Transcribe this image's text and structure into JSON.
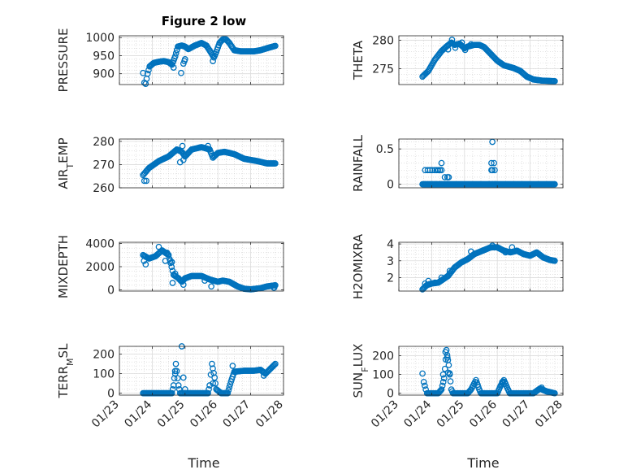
{
  "figure_title": "Figure 2 low",
  "x_axis_label": "Time",
  "colors": {
    "marker": "#0072BD",
    "axis": "#262626",
    "grid": "#cfcfcf"
  },
  "chart_data": [
    {
      "id": "pressure",
      "type": "scatter",
      "ylabel": "PRESSURE",
      "xlim": [
        0,
        5
      ],
      "ylim": [
        870,
        1005
      ],
      "yticks": [
        900,
        950,
        1000
      ],
      "xticks": [
        0,
        1,
        2,
        3,
        4,
        5
      ],
      "xticklabels": [
        "01/23",
        "01/24",
        "01/25",
        "01/26",
        "01/27",
        "01/28"
      ],
      "show_xticklabels": false,
      "grid": "major+minor",
      "anchors": [
        [
          0.72,
          902
        ],
        [
          0.76,
          875
        ],
        [
          0.8,
          872
        ],
        [
          0.86,
          900
        ],
        [
          0.92,
          920
        ],
        [
          1.05,
          930
        ],
        [
          1.2,
          933
        ],
        [
          1.35,
          935
        ],
        [
          1.5,
          932
        ],
        [
          1.6,
          925
        ],
        [
          1.7,
          948
        ],
        [
          1.78,
          975
        ],
        [
          1.9,
          978
        ],
        [
          2.0,
          975
        ],
        [
          2.1,
          968
        ],
        [
          2.3,
          978
        ],
        [
          2.5,
          985
        ],
        [
          2.65,
          978
        ],
        [
          2.78,
          960
        ],
        [
          2.88,
          945
        ],
        [
          2.95,
          960
        ],
        [
          3.05,
          985
        ],
        [
          3.15,
          995
        ],
        [
          3.25,
          995
        ],
        [
          3.35,
          985
        ],
        [
          3.5,
          965
        ],
        [
          3.7,
          962
        ],
        [
          3.9,
          962
        ],
        [
          4.1,
          962
        ],
        [
          4.3,
          965
        ],
        [
          4.55,
          972
        ],
        [
          4.75,
          977
        ]
      ],
      "extra_points": [
        [
          1.88,
          902
        ],
        [
          1.98,
          935
        ],
        [
          2.0,
          940
        ],
        [
          1.95,
          928
        ],
        [
          2.85,
          935
        ],
        [
          1.75,
          965
        ],
        [
          1.65,
          917
        ]
      ]
    },
    {
      "id": "theta",
      "type": "scatter",
      "ylabel": "THETA",
      "xlim": [
        0,
        5
      ],
      "ylim": [
        272.2,
        280.8
      ],
      "yticks": [
        275,
        280
      ],
      "xticks": [
        0,
        1,
        2,
        3,
        4,
        5
      ],
      "xticklabels": [
        "01/23",
        "01/24",
        "01/25",
        "01/26",
        "01/27",
        "01/28"
      ],
      "show_xticklabels": false,
      "grid": "major+minor",
      "anchors": [
        [
          0.72,
          273.6
        ],
        [
          0.9,
          274.6
        ],
        [
          1.1,
          276.6
        ],
        [
          1.3,
          278.1
        ],
        [
          1.45,
          278.9
        ],
        [
          1.6,
          279.6
        ],
        [
          1.7,
          279.2
        ],
        [
          1.85,
          279.4
        ],
        [
          2.0,
          278.6
        ],
        [
          2.1,
          278.9
        ],
        [
          2.3,
          279.2
        ],
        [
          2.45,
          279.2
        ],
        [
          2.6,
          278.8
        ],
        [
          2.8,
          277.6
        ],
        [
          3.0,
          276.4
        ],
        [
          3.2,
          275.6
        ],
        [
          3.5,
          275.1
        ],
        [
          3.7,
          274.6
        ],
        [
          3.9,
          273.6
        ],
        [
          4.1,
          273.1
        ],
        [
          4.35,
          272.9
        ],
        [
          4.75,
          272.8
        ]
      ],
      "extra_points": [
        [
          1.62,
          280.1
        ],
        [
          1.72,
          278.7
        ],
        [
          1.92,
          279.6
        ],
        [
          2.02,
          278.3
        ],
        [
          1.5,
          278.4
        ],
        [
          2.2,
          279.3
        ]
      ]
    },
    {
      "id": "air_temp",
      "type": "scatter",
      "ylabel": "AIR_T EMP",
      "xlim": [
        0,
        5
      ],
      "ylim": [
        260,
        281
      ],
      "yticks": [
        260,
        270,
        280
      ],
      "xticks": [
        0,
        1,
        2,
        3,
        4,
        5
      ],
      "xticklabels": [
        "01/23",
        "01/24",
        "01/25",
        "01/26",
        "01/27",
        "01/28"
      ],
      "show_xticklabels": false,
      "grid": "major+minor",
      "anchors": [
        [
          0.72,
          265.5
        ],
        [
          0.9,
          268.5
        ],
        [
          1.2,
          271.5
        ],
        [
          1.5,
          273.5
        ],
        [
          1.75,
          276.5
        ],
        [
          1.9,
          275.5
        ],
        [
          2.0,
          273.5
        ],
        [
          2.2,
          276.5
        ],
        [
          2.5,
          277.5
        ],
        [
          2.75,
          276.5
        ],
        [
          2.85,
          273
        ],
        [
          3.0,
          275
        ],
        [
          3.2,
          275.5
        ],
        [
          3.5,
          274.5
        ],
        [
          3.8,
          272.5
        ],
        [
          4.2,
          271.5
        ],
        [
          4.5,
          270.5
        ],
        [
          4.75,
          270.5
        ]
      ],
      "extra_points": [
        [
          0.76,
          263
        ],
        [
          0.82,
          263
        ],
        [
          1.85,
          271
        ],
        [
          1.92,
          278
        ],
        [
          1.95,
          272
        ],
        [
          2.7,
          278
        ]
      ]
    },
    {
      "id": "rainfall",
      "type": "scatter",
      "ylabel": "RAINFALL",
      "xlim": [
        0,
        5
      ],
      "ylim": [
        -0.05,
        0.64
      ],
      "yticks": [
        0,
        0.5
      ],
      "xticks": [
        0,
        1,
        2,
        3,
        4,
        5
      ],
      "xticklabels": [
        "01/23",
        "01/24",
        "01/25",
        "01/26",
        "01/27",
        "01/28"
      ],
      "show_xticklabels": false,
      "grid": "major+minor",
      "anchors": [
        [
          0.72,
          0
        ],
        [
          1.7,
          0
        ],
        [
          4.75,
          0
        ]
      ],
      "extra_points": [
        [
          0.8,
          0.2
        ],
        [
          0.88,
          0.2
        ],
        [
          0.95,
          0.2
        ],
        [
          1.02,
          0.2
        ],
        [
          1.1,
          0.2
        ],
        [
          1.15,
          0.2
        ],
        [
          1.2,
          0.2
        ],
        [
          1.25,
          0.2
        ],
        [
          1.3,
          0.3
        ],
        [
          1.3,
          0.2
        ],
        [
          1.4,
          0.1
        ],
        [
          1.48,
          0.1
        ],
        [
          1.52,
          0.1
        ],
        [
          0.8,
          0
        ],
        [
          0.88,
          0
        ],
        [
          0.95,
          0
        ],
        [
          1.02,
          0
        ],
        [
          1.1,
          0
        ],
        [
          1.15,
          0
        ],
        [
          1.25,
          0
        ],
        [
          1.3,
          0
        ],
        [
          1.4,
          0
        ],
        [
          1.48,
          0
        ],
        [
          2.85,
          0.6
        ],
        [
          2.82,
          0.3
        ],
        [
          2.9,
          0.3
        ],
        [
          2.85,
          0.2
        ],
        [
          2.92,
          0.2
        ],
        [
          2.82,
          0.2
        ],
        [
          2.75,
          0
        ],
        [
          2.85,
          0
        ],
        [
          2.92,
          0
        ],
        [
          2.95,
          0
        ]
      ]
    },
    {
      "id": "mixdepth",
      "type": "scatter",
      "ylabel": "MIXDEPTH",
      "xlim": [
        0,
        5
      ],
      "ylim": [
        -100,
        4100
      ],
      "yticks": [
        0,
        2000,
        4000
      ],
      "xticks": [
        0,
        1,
        2,
        3,
        4,
        5
      ],
      "xticklabels": [
        "01/23",
        "01/24",
        "01/25",
        "01/26",
        "01/27",
        "01/28"
      ],
      "show_xticklabels": false,
      "grid": "major+minor",
      "anchors": [
        [
          0.72,
          3000
        ],
        [
          0.9,
          2700
        ],
        [
          1.1,
          2900
        ],
        [
          1.3,
          3400
        ],
        [
          1.5,
          3000
        ],
        [
          1.65,
          1300
        ],
        [
          1.8,
          1000
        ],
        [
          1.9,
          700
        ],
        [
          2.0,
          1000
        ],
        [
          2.2,
          1200
        ],
        [
          2.5,
          1200
        ],
        [
          2.75,
          900
        ],
        [
          3.0,
          700
        ],
        [
          3.15,
          800
        ],
        [
          3.35,
          700
        ],
        [
          3.6,
          300
        ],
        [
          3.8,
          100
        ],
        [
          4.0,
          50
        ],
        [
          4.3,
          150
        ],
        [
          4.5,
          300
        ],
        [
          4.75,
          400
        ]
      ],
      "extra_points": [
        [
          0.75,
          2500
        ],
        [
          0.8,
          2200
        ],
        [
          1.2,
          3700
        ],
        [
          1.4,
          2500
        ],
        [
          1.45,
          3200
        ],
        [
          1.55,
          2500
        ],
        [
          1.6,
          2400
        ],
        [
          1.7,
          1400
        ],
        [
          1.62,
          600
        ],
        [
          1.95,
          450
        ],
        [
          2.8,
          300
        ],
        [
          2.6,
          800
        ],
        [
          4.7,
          200
        ],
        [
          4.72,
          200
        ]
      ]
    },
    {
      "id": "h2omixra",
      "type": "scatter",
      "ylabel": "H2OMIXRA",
      "xlim": [
        0,
        5
      ],
      "ylim": [
        1.2,
        4.1
      ],
      "yticks": [
        2,
        3,
        4
      ],
      "xticks": [
        0,
        1,
        2,
        3,
        4,
        5
      ],
      "xticklabels": [
        "01/23",
        "01/24",
        "01/25",
        "01/26",
        "01/27",
        "01/28"
      ],
      "show_xticklabels": false,
      "grid": "major+minor",
      "anchors": [
        [
          0.72,
          1.3
        ],
        [
          0.85,
          1.55
        ],
        [
          1.0,
          1.65
        ],
        [
          1.2,
          1.7
        ],
        [
          1.5,
          2.1
        ],
        [
          1.7,
          2.6
        ],
        [
          1.9,
          2.9
        ],
        [
          2.1,
          3.1
        ],
        [
          2.3,
          3.4
        ],
        [
          2.55,
          3.6
        ],
        [
          2.8,
          3.8
        ],
        [
          3.0,
          3.8
        ],
        [
          3.2,
          3.6
        ],
        [
          3.4,
          3.5
        ],
        [
          3.6,
          3.6
        ],
        [
          3.8,
          3.4
        ],
        [
          4.0,
          3.3
        ],
        [
          4.2,
          3.5
        ],
        [
          4.4,
          3.2
        ],
        [
          4.6,
          3.05
        ],
        [
          4.75,
          3.0
        ]
      ],
      "extra_points": [
        [
          0.8,
          1.65
        ],
        [
          0.9,
          1.8
        ],
        [
          1.1,
          1.7
        ],
        [
          1.3,
          2.0
        ],
        [
          1.55,
          2.4
        ],
        [
          2.2,
          3.55
        ],
        [
          2.85,
          3.9
        ],
        [
          3.05,
          3.75
        ],
        [
          3.25,
          3.5
        ],
        [
          3.45,
          3.8
        ]
      ]
    },
    {
      "id": "terr_msl",
      "type": "scatter",
      "ylabel": "TERR_M SL",
      "xlim": [
        0,
        5
      ],
      "ylim": [
        -10,
        240
      ],
      "yticks": [
        0,
        100,
        200
      ],
      "xticks": [
        0,
        1,
        2,
        3,
        4,
        5
      ],
      "xticklabels": [
        "01/23",
        "01/24",
        "01/25",
        "01/26",
        "01/27",
        "01/28"
      ],
      "show_xticklabels": true,
      "grid": "major+minor",
      "anchors": [
        [
          0.72,
          0
        ],
        [
          1.6,
          0
        ],
        [
          1.65,
          40
        ],
        [
          1.72,
          150
        ],
        [
          1.8,
          40
        ],
        [
          1.85,
          0
        ],
        [
          2.3,
          0
        ],
        [
          2.7,
          0
        ],
        [
          2.75,
          40
        ],
        [
          2.82,
          150
        ],
        [
          2.9,
          80
        ],
        [
          2.95,
          20
        ],
        [
          3.1,
          0
        ],
        [
          3.3,
          0
        ],
        [
          3.4,
          60
        ],
        [
          3.5,
          110
        ],
        [
          3.8,
          115
        ],
        [
          4.1,
          115
        ],
        [
          4.3,
          120
        ],
        [
          4.45,
          100
        ],
        [
          4.75,
          150
        ]
      ],
      "extra_points": [
        [
          1.7,
          100
        ],
        [
          1.9,
          270
        ],
        [
          1.95,
          80
        ],
        [
          2.0,
          20
        ],
        [
          2.85,
          50
        ],
        [
          3.45,
          140
        ],
        [
          4.4,
          90
        ]
      ]
    },
    {
      "id": "sun_flux",
      "type": "scatter",
      "ylabel": "SUN_F LUX",
      "xlim": [
        0,
        5
      ],
      "ylim": [
        -10,
        250
      ],
      "yticks": [
        0,
        100,
        200
      ],
      "xticks": [
        0,
        1,
        2,
        3,
        4,
        5
      ],
      "xticklabels": [
        "01/23",
        "01/24",
        "01/25",
        "01/26",
        "01/27",
        "01/28"
      ],
      "show_xticklabels": true,
      "grid": "major+minor",
      "anchors": [
        [
          0.72,
          105
        ],
        [
          0.76,
          60
        ],
        [
          0.82,
          20
        ],
        [
          0.86,
          0
        ],
        [
          1.2,
          0
        ],
        [
          1.3,
          20
        ],
        [
          1.38,
          80
        ],
        [
          1.45,
          230
        ],
        [
          1.52,
          150
        ],
        [
          1.6,
          20
        ],
        [
          1.65,
          0
        ],
        [
          2.1,
          0
        ],
        [
          2.2,
          20
        ],
        [
          2.35,
          70
        ],
        [
          2.45,
          20
        ],
        [
          2.5,
          0
        ],
        [
          3.0,
          0
        ],
        [
          3.1,
          40
        ],
        [
          3.2,
          70
        ],
        [
          3.3,
          30
        ],
        [
          3.38,
          0
        ],
        [
          4.1,
          0
        ],
        [
          4.3,
          25
        ],
        [
          4.5,
          10
        ],
        [
          4.75,
          0
        ]
      ],
      "extra_points": [
        [
          1.42,
          220
        ],
        [
          1.48,
          190
        ],
        [
          1.5,
          110
        ],
        [
          1.35,
          100
        ],
        [
          1.55,
          100
        ],
        [
          2.3,
          50
        ],
        [
          3.15,
          60
        ],
        [
          4.35,
          30
        ]
      ]
    }
  ]
}
